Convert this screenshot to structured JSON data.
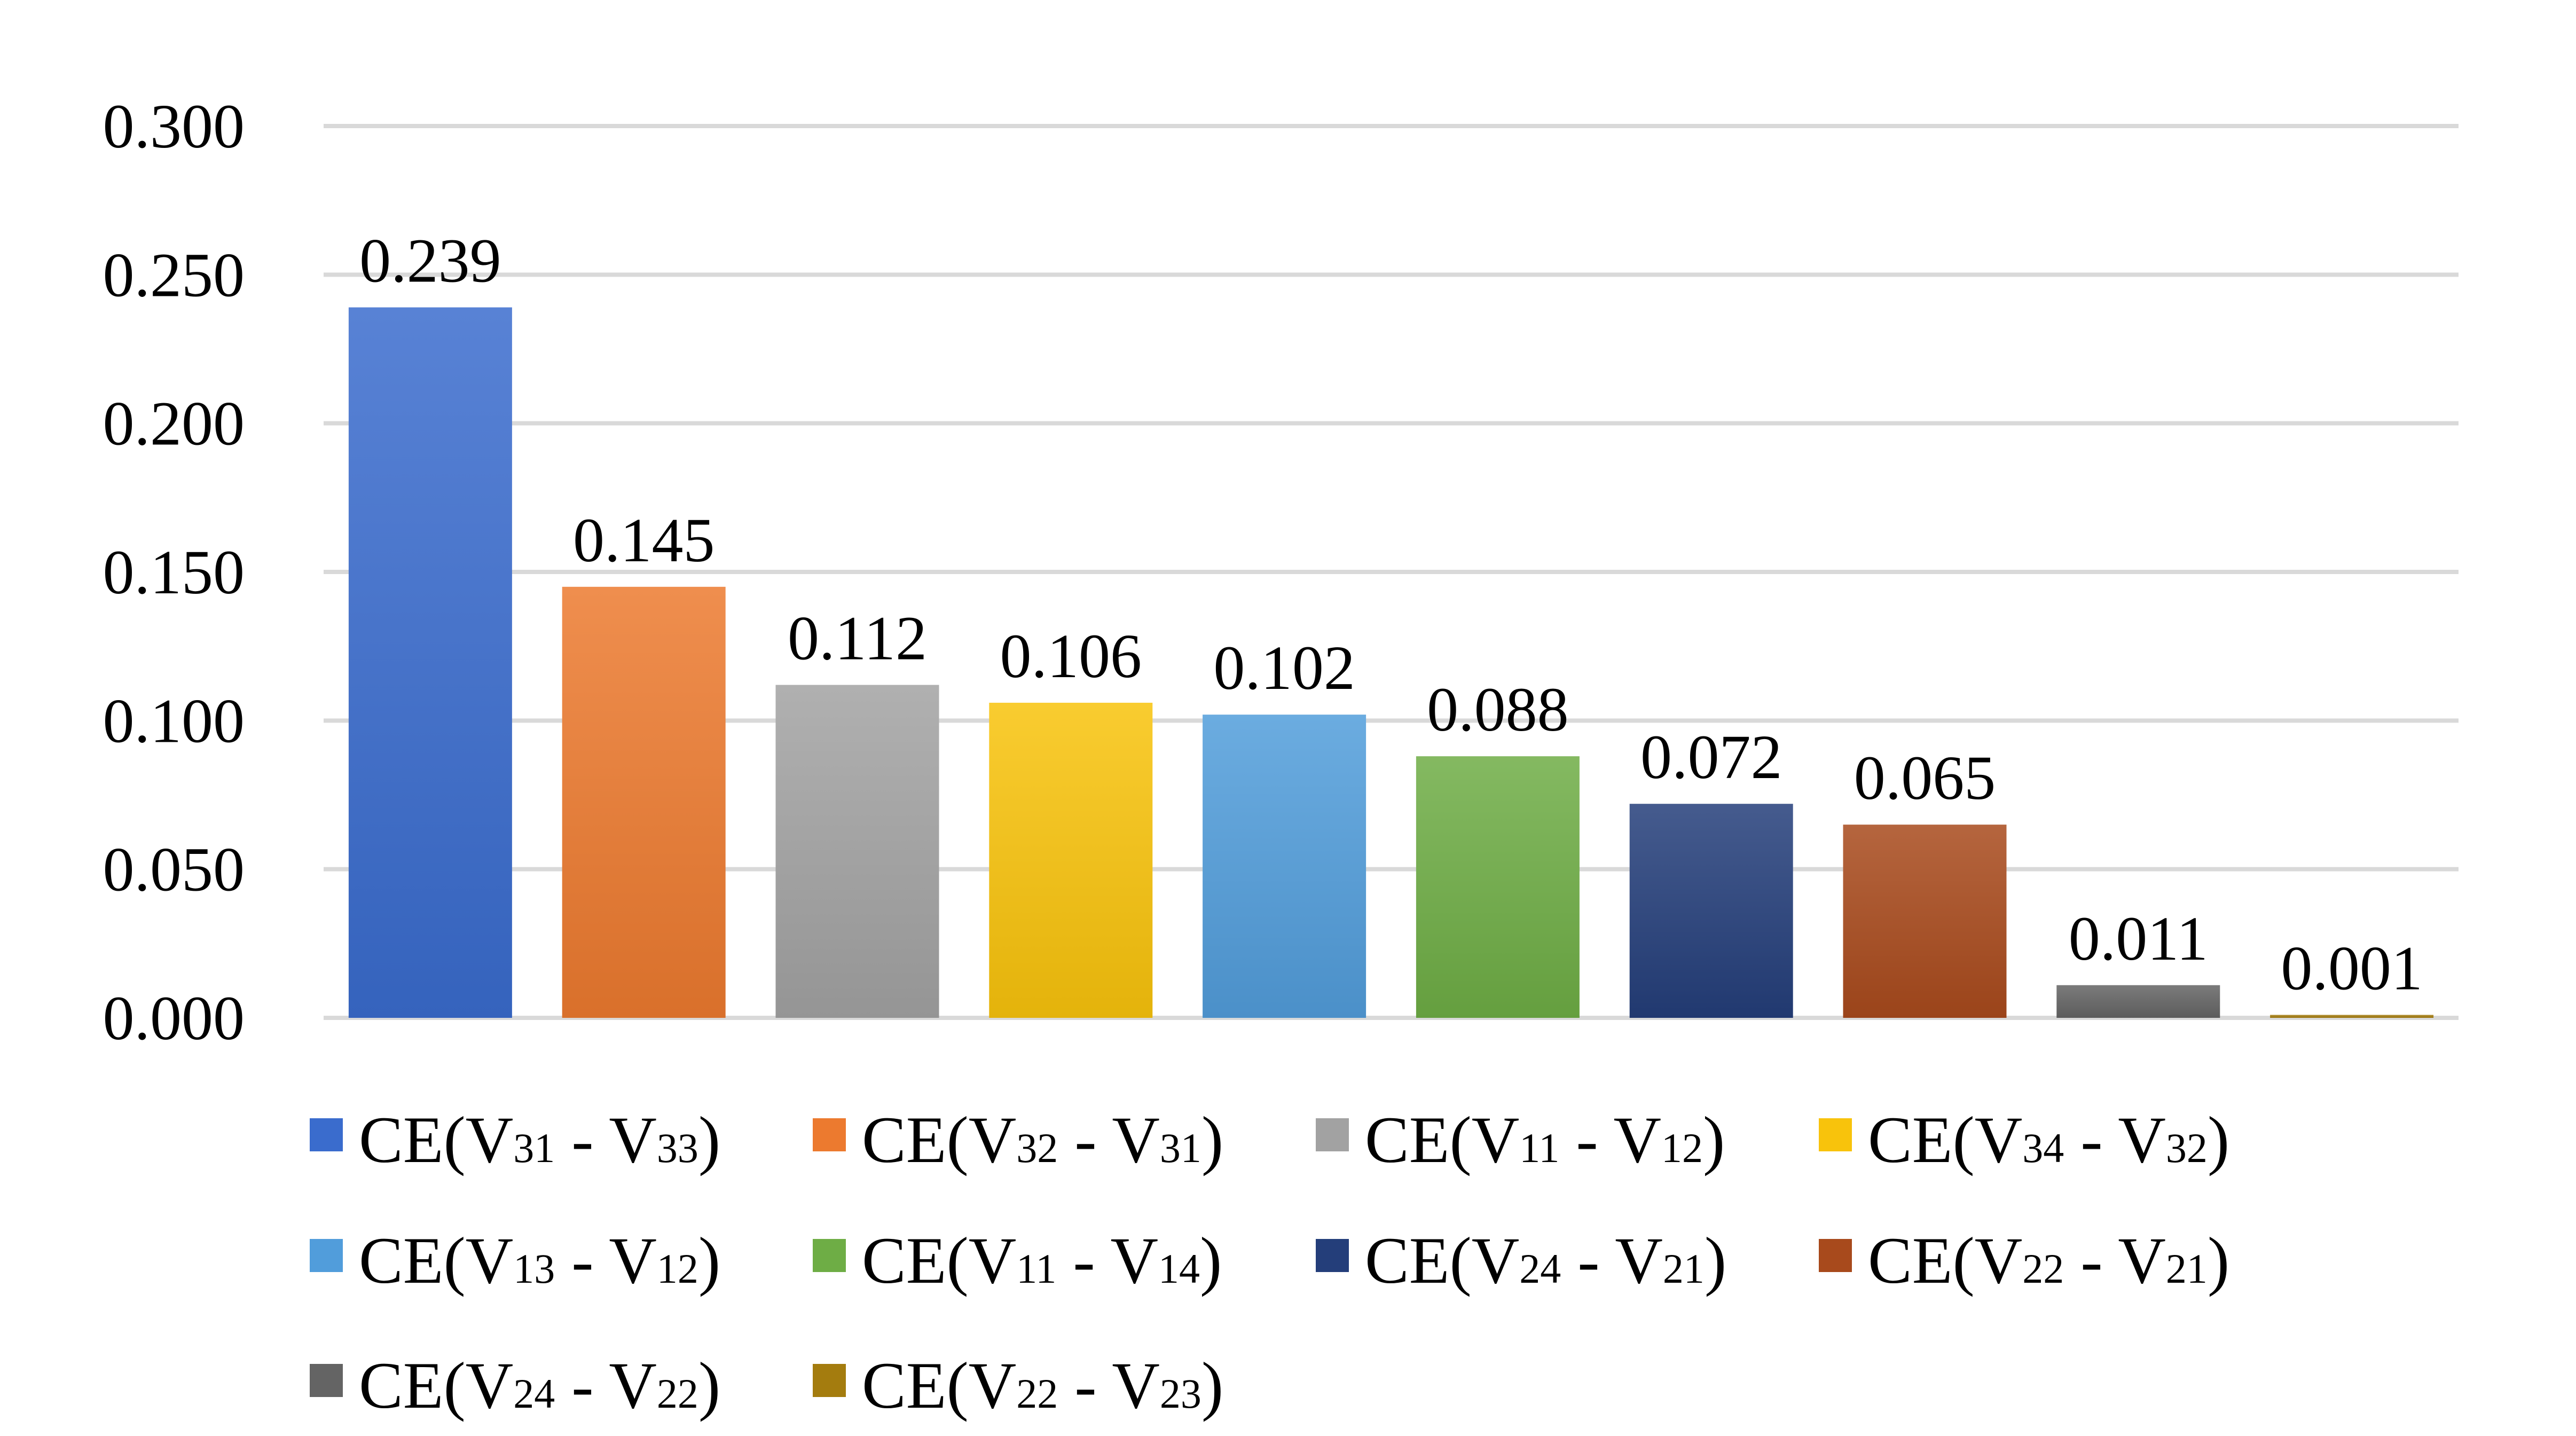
{
  "chart_data": {
    "type": "bar",
    "title": "",
    "xlabel": "",
    "ylabel": "",
    "ylim": [
      0,
      0.3
    ],
    "y_ticks": [
      "0.000",
      "0.050",
      "0.100",
      "0.150",
      "0.200",
      "0.250",
      "0.300"
    ],
    "y_tick_values": [
      0,
      0.05,
      0.1,
      0.15,
      0.2,
      0.25,
      0.3
    ],
    "grid": true,
    "legend_position": "bottom",
    "series": [
      {
        "name": "CE(V31 - V33)",
        "a": "31",
        "b": "33",
        "value": 0.239,
        "label": "0.239",
        "color": "#3a6ccd"
      },
      {
        "name": "CE(V32 - V31)",
        "a": "32",
        "b": "31",
        "value": 0.145,
        "label": "0.145",
        "color": "#ec7a2f"
      },
      {
        "name": "CE(V11 - V12)",
        "a": "11",
        "b": "12",
        "value": 0.112,
        "label": "0.112",
        "color": "#a2a2a2"
      },
      {
        "name": "CE(V34 - V32)",
        "a": "34",
        "b": "32",
        "value": 0.106,
        "label": "0.106",
        "color": "#f8c30c"
      },
      {
        "name": "CE(V13 - V12)",
        "a": "13",
        "b": "12",
        "value": 0.102,
        "label": "0.102",
        "color": "#519ddb"
      },
      {
        "name": "CE(V11 - V14)",
        "a": "11",
        "b": "14",
        "value": 0.088,
        "label": "0.088",
        "color": "#6ead45"
      },
      {
        "name": "CE(V24 - V21)",
        "a": "24",
        "b": "21",
        "value": 0.072,
        "label": "0.072",
        "color": "#243e7a"
      },
      {
        "name": "CE(V22 - V21)",
        "a": "22",
        "b": "21",
        "value": 0.065,
        "label": "0.065",
        "color": "#a84a1c"
      },
      {
        "name": "CE(V24 - V22)",
        "a": "24",
        "b": "22",
        "value": 0.011,
        "label": "0.011",
        "color": "#646464"
      },
      {
        "name": "CE(V22 - V23)",
        "a": "22",
        "b": "23",
        "value": 0.001,
        "label": "0.001",
        "color": "#a47c0e"
      }
    ]
  }
}
